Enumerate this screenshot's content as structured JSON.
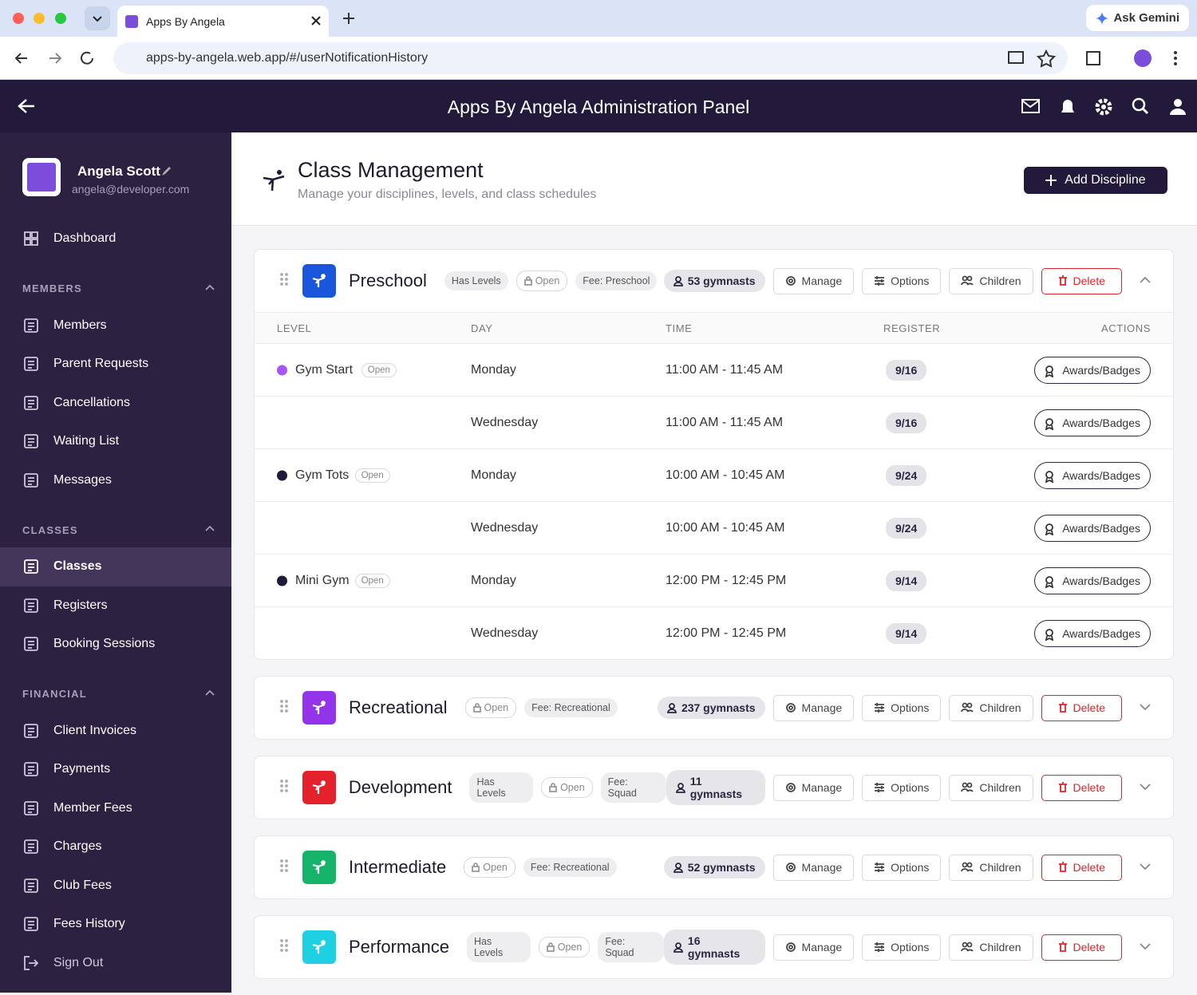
{
  "browser": {
    "tab_title": "Apps By Angela",
    "url": "apps-by-angela.web.app/#/userNotificationHistory",
    "ask_gemini": "Ask Gemini"
  },
  "header": {
    "title": "Apps By Angela Administration Panel"
  },
  "profile": {
    "name": "Angela Scott",
    "email": "angela@developer.com"
  },
  "sidebar": {
    "dashboard": "Dashboard",
    "active": "Classes",
    "sections": [
      {
        "title": "MEMBERS",
        "items": [
          "Members",
          "Parent Requests",
          "Cancellations",
          "Waiting List",
          "Messages"
        ]
      },
      {
        "title": "CLASSES",
        "items": [
          "Classes",
          "Registers",
          "Booking Sessions"
        ]
      },
      {
        "title": "FINANCIAL",
        "items": [
          "Client Invoices",
          "Payments",
          "Member Fees",
          "Charges",
          "Club Fees",
          "Fees History"
        ]
      }
    ],
    "sign_out": "Sign Out"
  },
  "page": {
    "title": "Class Management",
    "subtitle": "Manage your disciplines, levels, and class schedules",
    "add_button": "Add Discipline"
  },
  "actions": {
    "manage": "Manage",
    "options": "Options",
    "children": "Children",
    "delete": "Delete"
  },
  "disciplines": [
    {
      "name": "Preschool",
      "color": "#1a56db",
      "expanded": true,
      "tags": {
        "levels": "Has Levels",
        "status": "Open",
        "fee": "Fee: Preschool"
      },
      "gymnasts": "53 gymnasts",
      "table": {
        "columns": [
          "LEVEL",
          "DAY",
          "TIME",
          "REGISTER",
          "ACTIONS"
        ],
        "action_label": "Awards/Badges",
        "levels": [
          {
            "name": "Gym Start",
            "status": "Open",
            "dot": "#a855f7",
            "sessions": [
              {
                "day": "Monday",
                "time": "11:00 AM - 11:45 AM",
                "register": "9/16"
              },
              {
                "day": "Wednesday",
                "time": "11:00 AM - 11:45 AM",
                "register": "9/16"
              }
            ]
          },
          {
            "name": "Gym Tots",
            "status": "Open",
            "dot": "#1e1b3a",
            "sessions": [
              {
                "day": "Monday",
                "time": "10:00 AM - 10:45 AM",
                "register": "9/24"
              },
              {
                "day": "Wednesday",
                "time": "10:00 AM - 10:45 AM",
                "register": "9/24"
              }
            ]
          },
          {
            "name": "Mini Gym",
            "status": "Open",
            "dot": "#1e1b3a",
            "sessions": [
              {
                "day": "Monday",
                "time": "12:00 PM - 12:45 PM",
                "register": "9/14"
              },
              {
                "day": "Wednesday",
                "time": "12:00 PM - 12:45 PM",
                "register": "9/14"
              }
            ]
          }
        ]
      }
    },
    {
      "name": "Recreational",
      "color": "#9333ea",
      "expanded": false,
      "tags": {
        "status": "Open",
        "fee": "Fee: Recreational"
      },
      "gymnasts": "237 gymnasts"
    },
    {
      "name": "Development",
      "color": "#e3222b",
      "expanded": false,
      "tags": {
        "levels": "Has Levels",
        "status": "Open",
        "fee": "Fee: Squad"
      },
      "gymnasts": "11 gymnasts"
    },
    {
      "name": "Intermediate",
      "color": "#16b36b",
      "expanded": false,
      "tags": {
        "status": "Open",
        "fee": "Fee: Recreational"
      },
      "gymnasts": "52 gymnasts"
    },
    {
      "name": "Performance",
      "color": "#1fd0e3",
      "expanded": false,
      "tags": {
        "levels": "Has Levels",
        "status": "Open",
        "fee": "Fee: Squad"
      },
      "gymnasts": "16 gymnasts"
    }
  ]
}
